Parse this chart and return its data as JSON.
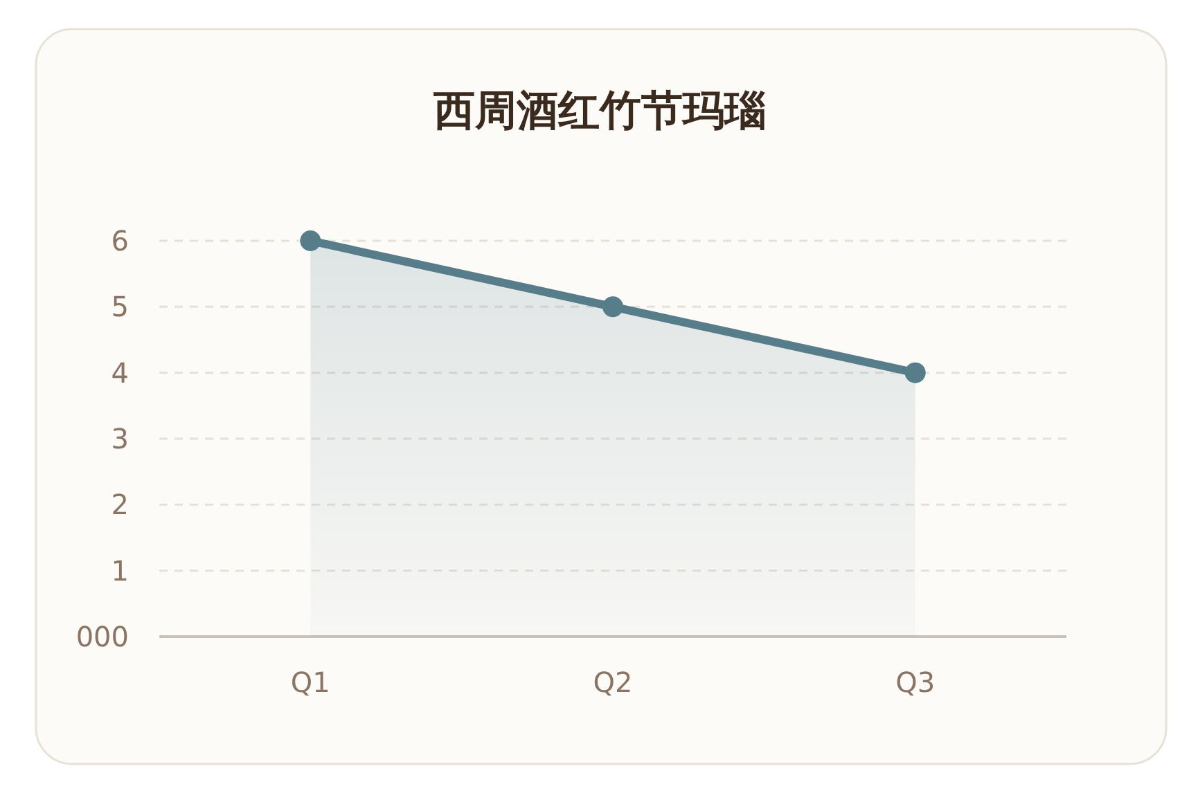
{
  "chart_data": {
    "type": "area",
    "title": "西周酒红竹节玛瑙",
    "categories": [
      "Q1",
      "Q2",
      "Q3"
    ],
    "values": [
      6,
      5,
      4
    ],
    "color": "#577d8b",
    "ylim": [
      0,
      6
    ],
    "yticks": [
      {
        "value": 0,
        "label": "000"
      },
      1,
      2,
      3,
      4,
      5,
      6
    ],
    "grid": "y",
    "marker": "circle"
  }
}
